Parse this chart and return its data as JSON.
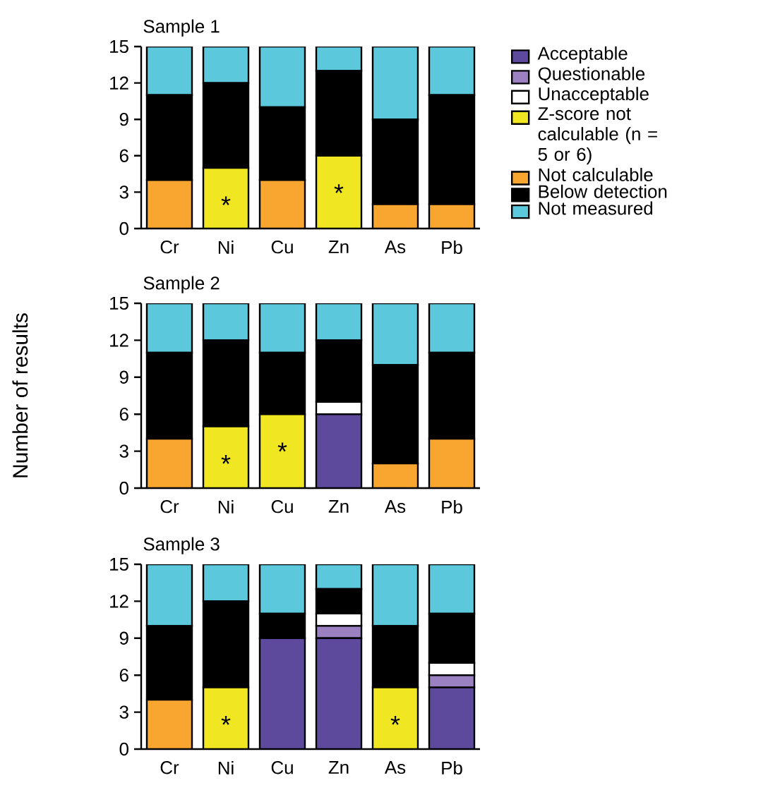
{
  "chart_data": [
    {
      "type": "bar",
      "stacked": true,
      "title": "Sample 1",
      "categories": [
        "Cr",
        "Ni",
        "Cu",
        "Zn",
        "As",
        "Pb"
      ],
      "ylim": [
        0,
        15
      ],
      "yticks": [
        0,
        3,
        6,
        9,
        12,
        15
      ],
      "legend": "right",
      "series": [
        {
          "name": "Acceptable",
          "color": "#5e4a9c",
          "values": [
            0,
            0,
            0,
            0,
            0,
            0
          ]
        },
        {
          "name": "Questionable",
          "color": "#9b80c2",
          "values": [
            0,
            0,
            0,
            0,
            0,
            0
          ]
        },
        {
          "name": "Unacceptable",
          "color": "#ffffff",
          "values": [
            0,
            0,
            0,
            0,
            0,
            0
          ]
        },
        {
          "name": "Z-score not calculable (n = 5 or 6)",
          "color": "#f0e622",
          "values": [
            0,
            5,
            0,
            6,
            0,
            0
          ]
        },
        {
          "name": "Not calculable",
          "color": "#f8a630",
          "values": [
            4,
            0,
            4,
            0,
            2,
            2
          ]
        },
        {
          "name": "Below detection",
          "color": "#000000",
          "values": [
            7,
            7,
            6,
            7,
            7,
            9
          ]
        },
        {
          "name": "Not measured",
          "color": "#5bc8dc",
          "values": [
            4,
            3,
            5,
            2,
            6,
            4
          ]
        }
      ],
      "annotations": [
        {
          "text": "*",
          "x": "Ni",
          "y": 5
        },
        {
          "text": "*",
          "x": "Zn",
          "y": 6
        }
      ]
    },
    {
      "type": "bar",
      "stacked": true,
      "title": "Sample 2",
      "ylabel": "Number of results",
      "categories": [
        "Cr",
        "Ni",
        "Cu",
        "Zn",
        "As",
        "Pb"
      ],
      "ylim": [
        0,
        15
      ],
      "yticks": [
        0,
        3,
        6,
        9,
        12,
        15
      ],
      "series": [
        {
          "color": "#5e4a9c",
          "values": [
            0,
            0,
            0,
            6,
            0,
            0
          ]
        },
        {
          "color": "#9b80c2",
          "values": [
            0,
            0,
            0,
            0,
            0,
            0
          ]
        },
        {
          "color": "#ffffff",
          "values": [
            0,
            0,
            0,
            1,
            0,
            0
          ]
        },
        {
          "color": "#f0e622",
          "values": [
            0,
            5,
            6,
            0,
            0,
            0
          ]
        },
        {
          "color": "#f8a630",
          "values": [
            4,
            0,
            0,
            0,
            2,
            4
          ]
        },
        {
          "color": "#000000",
          "values": [
            7,
            7,
            5,
            5,
            8,
            7
          ]
        },
        {
          "color": "#5bc8dc",
          "values": [
            4,
            3,
            4,
            3,
            5,
            4
          ]
        }
      ],
      "annotations": [
        {
          "text": "*",
          "x": "Ni",
          "y": 5
        },
        {
          "text": "*",
          "x": "Cu",
          "y": 6
        }
      ]
    },
    {
      "type": "bar",
      "stacked": true,
      "title": "Sample 3",
      "categories": [
        "Cr",
        "Ni",
        "Cu",
        "Zn",
        "As",
        "Pb"
      ],
      "ylim": [
        0,
        15
      ],
      "yticks": [
        0,
        3,
        6,
        9,
        12,
        15
      ],
      "series": [
        {
          "color": "#5e4a9c",
          "values": [
            0,
            0,
            9,
            9,
            0,
            5
          ]
        },
        {
          "color": "#9b80c2",
          "values": [
            0,
            0,
            0,
            1,
            0,
            1
          ]
        },
        {
          "color": "#ffffff",
          "values": [
            0,
            0,
            0,
            1,
            0,
            1
          ]
        },
        {
          "color": "#f0e622",
          "values": [
            0,
            5,
            0,
            0,
            5,
            0
          ]
        },
        {
          "color": "#f8a630",
          "values": [
            4,
            0,
            0,
            0,
            0,
            0
          ]
        },
        {
          "color": "#000000",
          "values": [
            6,
            7,
            2,
            2,
            5,
            4
          ]
        },
        {
          "color": "#5bc8dc",
          "values": [
            5,
            3,
            4,
            2,
            5,
            4
          ]
        }
      ],
      "annotations": [
        {
          "text": "*",
          "x": "Ni",
          "y": 5
        },
        {
          "text": "*",
          "x": "As",
          "y": 5
        }
      ]
    }
  ]
}
